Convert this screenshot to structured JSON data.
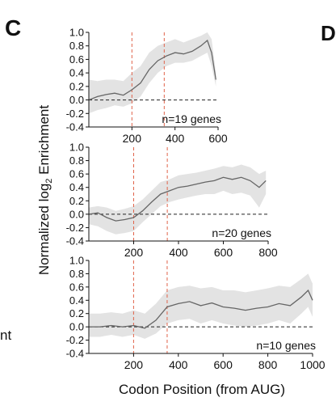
{
  "panel_letter": "C",
  "next_panel_letter": "D",
  "side_fragment": "nt",
  "ylabel_main": "Normalized log",
  "ylabel_sub": "2",
  "ylabel_end": " Enrichment",
  "xlabel": "Codon Position (from AUG)",
  "colors": {
    "line": "#666666",
    "band": "#e3e3e3",
    "marker": "#e0634a",
    "zero": "#222222"
  },
  "chart_data": [
    {
      "type": "line",
      "annotation": "n=19 genes",
      "xlim": [
        0,
        600
      ],
      "ylim": [
        -0.4,
        1.0
      ],
      "x_ticks": [
        200,
        400,
        600
      ],
      "y_ticks": [
        1.0,
        0.8,
        0.6,
        0.4,
        0.2,
        0.0,
        -0.2,
        -0.4
      ],
      "y_tick_labels": [
        "1.0",
        "0.8",
        "0.6",
        "0.4",
        "0.2",
        "0.0",
        "-0.2",
        "-0.4"
      ],
      "reference_lines": {
        "horizontal_y": 0.0,
        "vertical_x": [
          200,
          350
        ]
      },
      "x": [
        0,
        40,
        80,
        120,
        160,
        200,
        240,
        280,
        320,
        360,
        400,
        440,
        480,
        520,
        550,
        570,
        590
      ],
      "mean": [
        0.0,
        0.05,
        0.08,
        0.1,
        0.07,
        0.15,
        0.25,
        0.45,
        0.58,
        0.65,
        0.7,
        0.68,
        0.72,
        0.8,
        0.88,
        0.7,
        0.3
      ],
      "lower": [
        -0.2,
        -0.15,
        -0.12,
        -0.08,
        -0.1,
        -0.05,
        0.05,
        0.25,
        0.4,
        0.5,
        0.55,
        0.55,
        0.58,
        0.65,
        0.7,
        0.5,
        0.2
      ],
      "upper": [
        0.3,
        0.28,
        0.3,
        0.3,
        0.28,
        0.4,
        0.5,
        0.7,
        0.8,
        0.85,
        0.9,
        0.85,
        0.9,
        0.95,
        1.0,
        0.9,
        0.4
      ]
    },
    {
      "type": "line",
      "annotation": "n=20 genes",
      "xlim": [
        0,
        800
      ],
      "ylim": [
        -0.4,
        1.0
      ],
      "x_ticks": [
        200,
        400,
        600,
        800
      ],
      "y_ticks": [
        1.0,
        0.8,
        0.6,
        0.4,
        0.2,
        0.0,
        -0.2,
        -0.4
      ],
      "y_tick_labels": [
        "1.0",
        "0.8",
        "0.6",
        "0.4",
        "0.2",
        "0.0",
        "-0.2",
        "-0.4"
      ],
      "reference_lines": {
        "horizontal_y": 0.0,
        "vertical_x": [
          200,
          350
        ]
      },
      "x": [
        0,
        40,
        80,
        120,
        160,
        200,
        240,
        280,
        320,
        360,
        400,
        440,
        480,
        520,
        560,
        600,
        640,
        680,
        720,
        760,
        790
      ],
      "mean": [
        0.0,
        0.02,
        -0.05,
        -0.1,
        -0.08,
        -0.05,
        0.05,
        0.18,
        0.3,
        0.35,
        0.4,
        0.42,
        0.45,
        0.48,
        0.5,
        0.55,
        0.52,
        0.55,
        0.5,
        0.4,
        0.5
      ],
      "lower": [
        -0.15,
        -0.18,
        -0.25,
        -0.3,
        -0.28,
        -0.25,
        -0.12,
        0.0,
        0.12,
        0.18,
        0.22,
        0.25,
        0.28,
        0.3,
        0.3,
        0.35,
        0.3,
        0.32,
        0.28,
        0.1,
        0.3
      ],
      "upper": [
        0.1,
        0.12,
        0.1,
        0.05,
        0.08,
        0.12,
        0.22,
        0.35,
        0.48,
        0.52,
        0.58,
        0.6,
        0.62,
        0.65,
        0.68,
        0.72,
        0.7,
        0.74,
        0.7,
        0.6,
        0.65
      ]
    },
    {
      "type": "line",
      "annotation": "n=10 genes",
      "xlim": [
        0,
        1000
      ],
      "ylim": [
        -0.4,
        1.0
      ],
      "x_ticks": [
        200,
        400,
        600,
        800,
        1000
      ],
      "y_ticks": [
        1.0,
        0.8,
        0.6,
        0.4,
        0.2,
        0.0,
        -0.2,
        -0.4
      ],
      "y_tick_labels": [
        "1.0",
        "0.8",
        "0.6",
        "0.4",
        "0.2",
        "0.0",
        "-0.2",
        "-0.4"
      ],
      "reference_lines": {
        "horizontal_y": 0.0,
        "vertical_x": [
          200,
          350
        ]
      },
      "x": [
        0,
        50,
        100,
        150,
        200,
        250,
        300,
        350,
        400,
        450,
        500,
        550,
        600,
        650,
        700,
        750,
        800,
        850,
        900,
        950,
        980,
        1000
      ],
      "mean": [
        0.0,
        0.0,
        0.02,
        0.0,
        0.02,
        -0.02,
        0.1,
        0.3,
        0.35,
        0.38,
        0.32,
        0.36,
        0.3,
        0.28,
        0.25,
        0.28,
        0.3,
        0.35,
        0.32,
        0.45,
        0.55,
        0.4
      ],
      "lower": [
        -0.15,
        -0.15,
        -0.12,
        -0.15,
        -0.12,
        -0.18,
        -0.1,
        0.05,
        0.1,
        0.12,
        0.05,
        0.1,
        0.05,
        0.02,
        0.0,
        0.02,
        0.05,
        0.1,
        0.05,
        0.2,
        0.3,
        0.15
      ],
      "upper": [
        0.2,
        0.2,
        0.22,
        0.2,
        0.25,
        0.2,
        0.35,
        0.55,
        0.6,
        0.62,
        0.58,
        0.6,
        0.55,
        0.55,
        0.52,
        0.55,
        0.58,
        0.62,
        0.6,
        0.72,
        0.8,
        0.65
      ]
    }
  ]
}
